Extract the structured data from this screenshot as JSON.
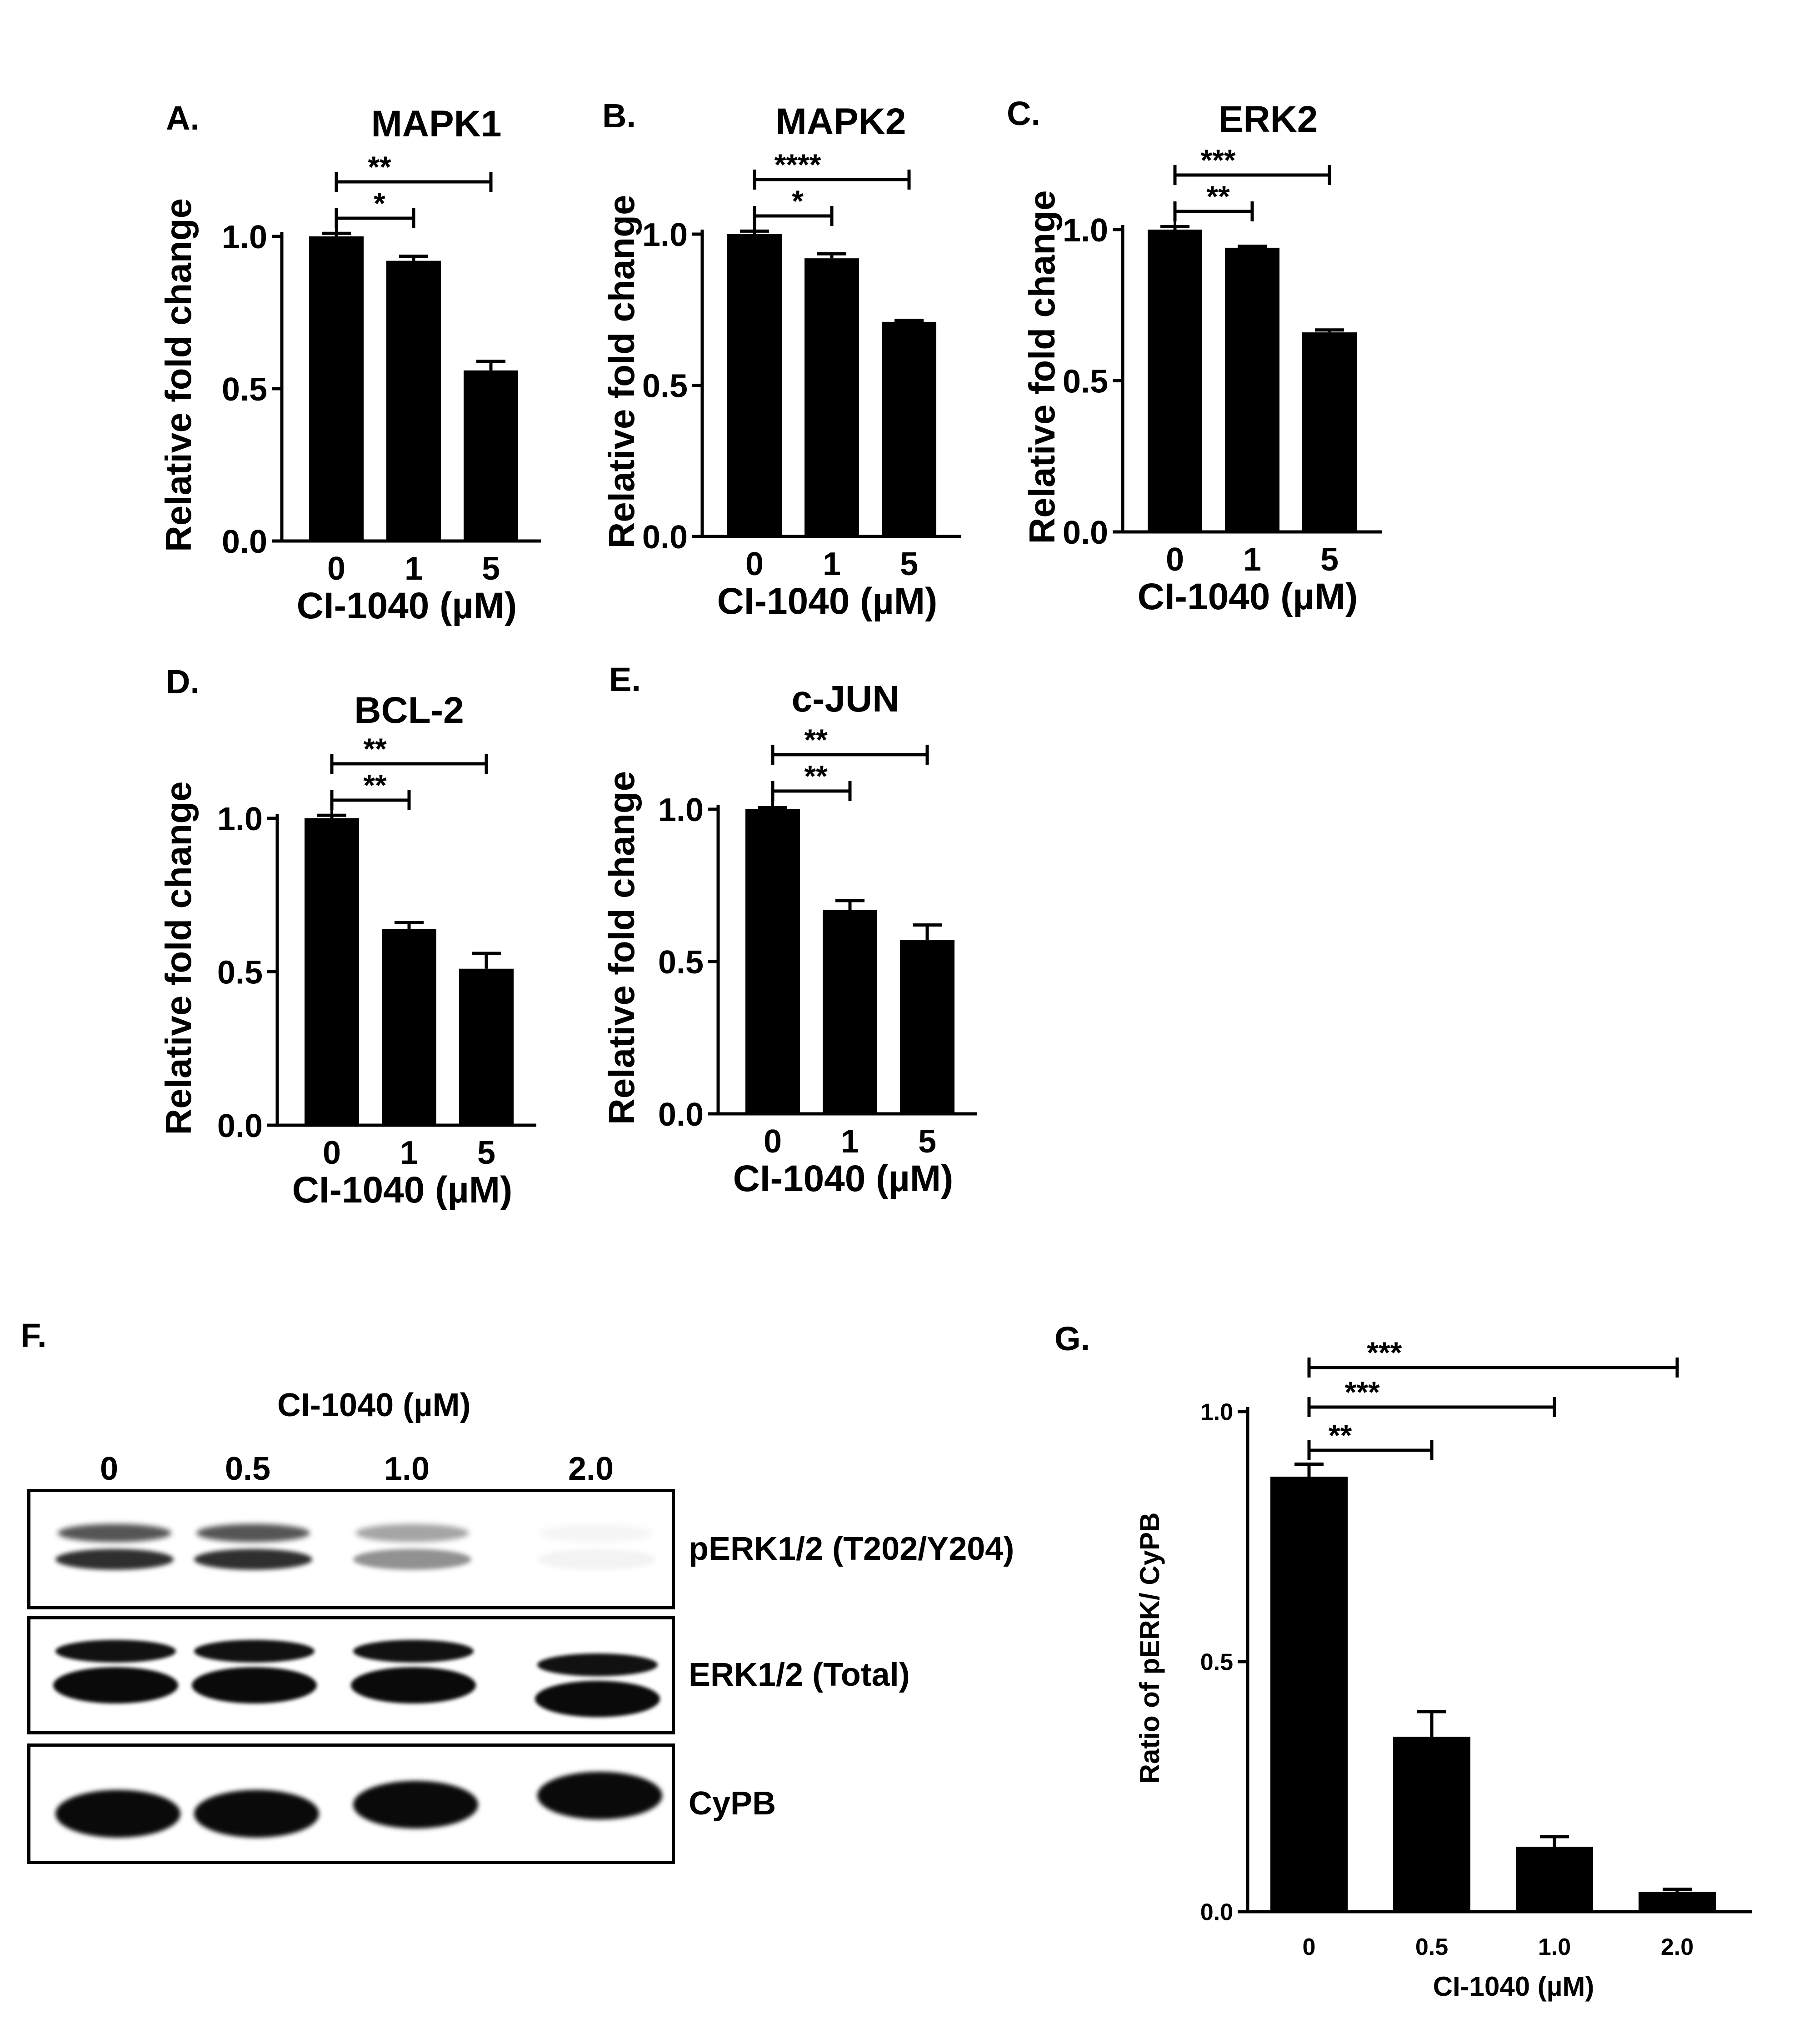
{
  "chart_data": [
    {
      "panel": "A.",
      "type": "bar",
      "title": "MAPK1",
      "xlabel": "CI-1040 (µM)",
      "ylabel": "Relative fold change",
      "categories": [
        "0",
        "1",
        "5"
      ],
      "values": [
        1.0,
        0.92,
        0.56
      ],
      "errors": [
        0.01,
        0.015,
        0.03
      ],
      "ylim": [
        0,
        1.0
      ],
      "yticks": [
        "0.0",
        "0.5",
        "1.0"
      ],
      "significance": [
        {
          "from": 0,
          "to": 1,
          "label": "*"
        },
        {
          "from": 0,
          "to": 2,
          "label": "**"
        }
      ]
    },
    {
      "panel": "B.",
      "type": "bar",
      "title": "MAPK2",
      "xlabel": "CI-1040 (µM)",
      "ylabel": "Relative fold change",
      "categories": [
        "0",
        "1",
        "5"
      ],
      "values": [
        1.0,
        0.92,
        0.71
      ],
      "errors": [
        0.01,
        0.015,
        0.005
      ],
      "ylim": [
        0,
        1.0
      ],
      "yticks": [
        "0.0",
        "0.5",
        "1.0"
      ],
      "significance": [
        {
          "from": 0,
          "to": 1,
          "label": "*"
        },
        {
          "from": 0,
          "to": 2,
          "label": "****"
        }
      ]
    },
    {
      "panel": "C.",
      "type": "bar",
      "title": "ERK2",
      "xlabel": "CI-1040 (µM)",
      "ylabel": "Relative fold change",
      "categories": [
        "0",
        "1",
        "5"
      ],
      "values": [
        1.0,
        0.94,
        0.66
      ],
      "errors": [
        0.01,
        0.005,
        0.008
      ],
      "ylim": [
        0,
        1.0
      ],
      "yticks": [
        "0.0",
        "0.5",
        "1.0"
      ],
      "significance": [
        {
          "from": 0,
          "to": 1,
          "label": "**"
        },
        {
          "from": 0,
          "to": 2,
          "label": "***"
        }
      ]
    },
    {
      "panel": "D.",
      "type": "bar",
      "title": "BCL-2",
      "xlabel": "CI-1040 (µM)",
      "ylabel": "Relative fold change",
      "categories": [
        "0",
        "1",
        "5"
      ],
      "values": [
        1.0,
        0.64,
        0.51
      ],
      "errors": [
        0.01,
        0.02,
        0.05
      ],
      "ylim": [
        0,
        1.0
      ],
      "yticks": [
        "0.0",
        "0.5",
        "1.0"
      ],
      "significance": [
        {
          "from": 0,
          "to": 1,
          "label": "**"
        },
        {
          "from": 0,
          "to": 2,
          "label": "**"
        }
      ]
    },
    {
      "panel": "E.",
      "type": "bar",
      "title": "c-JUN",
      "xlabel": "CI-1040 (µM)",
      "ylabel": "Relative fold change",
      "categories": [
        "0",
        "1",
        "5"
      ],
      "values": [
        1.0,
        0.67,
        0.57
      ],
      "errors": [
        0.005,
        0.03,
        0.05
      ],
      "ylim": [
        0,
        1.0
      ],
      "yticks": [
        "0.0",
        "0.5",
        "1.0"
      ],
      "significance": [
        {
          "from": 0,
          "to": 1,
          "label": "**"
        },
        {
          "from": 0,
          "to": 2,
          "label": "**"
        }
      ]
    },
    {
      "panel": "G.",
      "type": "bar",
      "title": "",
      "xlabel": "CI-1040 (µM)",
      "ylabel": "Ratio  of pERK/ CyPB",
      "categories": [
        "0",
        "0.5",
        "1.0",
        "2.0"
      ],
      "values": [
        0.87,
        0.35,
        0.13,
        0.04
      ],
      "errors": [
        0.025,
        0.05,
        0.02,
        0.005
      ],
      "ylim": [
        0,
        1.0
      ],
      "yticks": [
        "0.0",
        "0.5",
        "1.0"
      ],
      "significance": [
        {
          "from": 0,
          "to": 1,
          "label": "**"
        },
        {
          "from": 0,
          "to": 2,
          "label": "***"
        },
        {
          "from": 0,
          "to": 3,
          "label": "***"
        }
      ]
    }
  ],
  "blot": {
    "panel": "F.",
    "title": "CI-1040 (µM)",
    "lanes": [
      "0",
      "0.5",
      "1.0",
      "2.0"
    ],
    "rows": [
      {
        "label": "pERK1/2 (T202/Y204)",
        "intensity": [
          0.85,
          0.85,
          0.45,
          0.05
        ]
      },
      {
        "label": "ERK1/2 (Total)",
        "intensity": [
          1.0,
          1.0,
          1.0,
          1.0
        ]
      },
      {
        "label": "CyPB",
        "intensity": [
          1.0,
          1.0,
          1.0,
          1.0
        ]
      }
    ]
  }
}
